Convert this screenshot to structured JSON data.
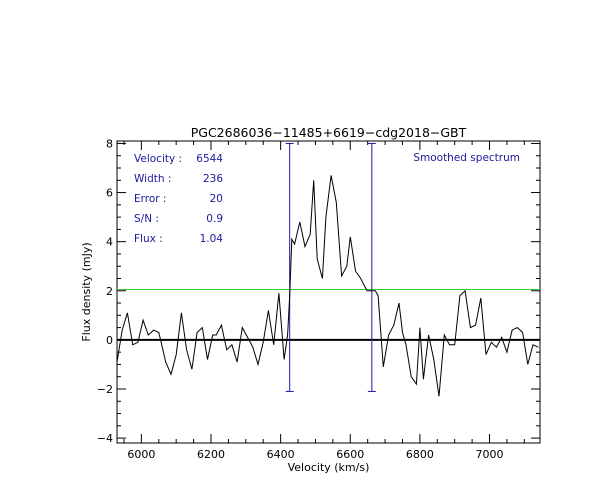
{
  "chart_data": {
    "type": "line",
    "title": "PGC2686036−11485+6619−cdg2018−GBT",
    "xlabel": "Velocity (km/s)",
    "ylabel": "Flux density (mJy)",
    "xlim": [
      5930,
      7145
    ],
    "ylim": [
      -4.2,
      8.1
    ],
    "xticks": [
      {
        "value": 6000,
        "label": "6000"
      },
      {
        "value": 6200,
        "label": "6200"
      },
      {
        "value": 6400,
        "label": "6400"
      },
      {
        "value": 6600,
        "label": "6600"
      },
      {
        "value": 6800,
        "label": "6800"
      },
      {
        "value": 7000,
        "label": "7000"
      }
    ],
    "yticks": [
      {
        "value": -4,
        "label": "−4"
      },
      {
        "value": -2,
        "label": "−2"
      },
      {
        "value": 0,
        "label": "0"
      },
      {
        "value": 2,
        "label": "2"
      },
      {
        "value": 4,
        "label": "4"
      },
      {
        "value": 6,
        "label": "6"
      },
      {
        "value": 8,
        "label": "8"
      }
    ],
    "annotation_label": "Smoothed spectrum",
    "stats": [
      {
        "label": "Velocity :",
        "value": "6544"
      },
      {
        "label": "Width :",
        "value": "236"
      },
      {
        "label": "Error :",
        "value": "20"
      },
      {
        "label": "S/N :",
        "value": "0.9"
      },
      {
        "label": "Flux :",
        "value": "1.04"
      }
    ],
    "zero_line": 0,
    "level_line": 2.05,
    "vlines": [
      {
        "x": 6426,
        "y_top": 8.0,
        "y_bottom": -2.1
      },
      {
        "x": 6662,
        "y_top": 8.0,
        "y_bottom": -2.1
      }
    ],
    "colors": {
      "spectrum": "#000000",
      "zero_line": "#000000",
      "level_line": "#33cc33",
      "vlines": "#1a1a9c",
      "stats_text": "#1a1a9c",
      "annotation_text": "#1a1a9c"
    },
    "series": [
      {
        "x": [
          5930,
          5945,
          5960,
          5975,
          5990,
          6005,
          6020,
          6035,
          6050,
          6060,
          6070,
          6085,
          6100,
          6115,
          6130,
          6145,
          6160,
          6175,
          6190,
          6205,
          6215,
          6230,
          6245,
          6260,
          6275,
          6290,
          6305,
          6320,
          6335,
          6350,
          6365,
          6380,
          6395,
          6410,
          6420,
          6426,
          6432,
          6440,
          6455,
          6470,
          6485,
          6495,
          6505,
          6520,
          6530,
          6545,
          6560,
          6575,
          6590,
          6600,
          6615,
          6630,
          6648,
          6662,
          6672,
          6680,
          6695,
          6710,
          6725,
          6740,
          6750,
          6760,
          6775,
          6790,
          6800,
          6810,
          6825,
          6840,
          6855,
          6870,
          6885,
          6900,
          6915,
          6930,
          6945,
          6960,
          6975,
          6990,
          7005,
          7020,
          7035,
          7050,
          7065,
          7080,
          7095,
          7110,
          7125,
          7140
        ],
        "y": [
          -0.9,
          0.4,
          1.1,
          -0.2,
          -0.1,
          0.8,
          0.2,
          0.4,
          0.3,
          -0.3,
          -0.9,
          -1.4,
          -0.6,
          1.1,
          -0.4,
          -1.2,
          0.3,
          0.5,
          -0.8,
          0.2,
          0.2,
          0.6,
          -0.4,
          -0.2,
          -0.9,
          0.5,
          0.1,
          -0.3,
          -1.0,
          -0.1,
          1.2,
          -0.2,
          1.9,
          -0.8,
          0.2,
          1.8,
          4.1,
          3.9,
          4.8,
          3.8,
          4.3,
          6.5,
          3.3,
          2.5,
          5.0,
          6.7,
          5.6,
          2.6,
          3.0,
          4.2,
          2.8,
          2.5,
          2.0,
          2.0,
          2.0,
          1.8,
          -1.1,
          0.2,
          0.6,
          1.5,
          0.3,
          -0.2,
          -1.5,
          -1.8,
          0.5,
          -1.6,
          0.2,
          -0.8,
          -2.3,
          0.2,
          -0.2,
          -0.2,
          1.8,
          2.0,
          0.5,
          0.6,
          1.7,
          -0.6,
          -0.1,
          -0.3,
          0.1,
          -0.5,
          0.4,
          0.5,
          0.3,
          -1.0,
          -0.2,
          -0.3
        ]
      }
    ]
  }
}
